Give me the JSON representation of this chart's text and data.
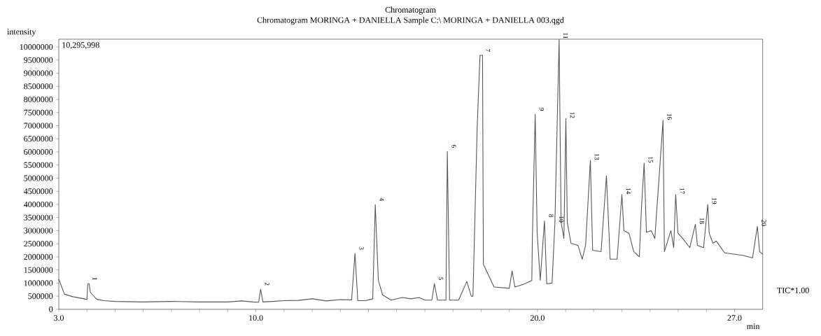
{
  "chart_data": {
    "type": "line",
    "title": "Chromatogram",
    "subtitle": "Chromatogram MORINGA + DANIELLA  Sample  C:\\ MORINGA + DANIELLA  003.qgd",
    "xlabel": "min",
    "ylabel": "intensity",
    "xlim": [
      3.0,
      28.0
    ],
    "ylim": [
      0,
      10295998
    ],
    "xticks": [
      {
        "value": 3,
        "label": "3.0"
      },
      {
        "value": 4,
        "label": null
      },
      {
        "value": 5,
        "label": null
      },
      {
        "value": 6,
        "label": null
      },
      {
        "value": 7,
        "label": null
      },
      {
        "value": 8,
        "label": null
      },
      {
        "value": 9,
        "label": null
      },
      {
        "value": 10,
        "label": "10.0"
      },
      {
        "value": 11,
        "label": null
      },
      {
        "value": 12,
        "label": null
      },
      {
        "value": 13,
        "label": null
      },
      {
        "value": 14,
        "label": null
      },
      {
        "value": 15,
        "label": null
      },
      {
        "value": 16,
        "label": null
      },
      {
        "value": 17,
        "label": null
      },
      {
        "value": 18,
        "label": null
      },
      {
        "value": 19,
        "label": null
      },
      {
        "value": 20,
        "label": "20.0"
      },
      {
        "value": 21,
        "label": null
      },
      {
        "value": 22,
        "label": null
      },
      {
        "value": 23,
        "label": null
      },
      {
        "value": 24,
        "label": null
      },
      {
        "value": 25,
        "label": null
      },
      {
        "value": 26,
        "label": null
      },
      {
        "value": 27,
        "label": "27.0"
      }
    ],
    "yticks": [
      0,
      500000,
      1000000,
      1500000,
      2000000,
      2500000,
      3000000,
      3500000,
      4000000,
      4500000,
      5000000,
      5500000,
      6000000,
      6500000,
      7000000,
      7500000,
      8000000,
      8500000,
      9000000,
      9500000,
      10000000
    ],
    "grid": false,
    "marker": "none",
    "line_style": "solid",
    "series": [
      {
        "color": "#555555",
        "x": [
          3.0,
          3.2,
          3.5,
          3.9,
          4.0,
          4.03,
          4.08,
          4.12,
          4.2,
          4.35,
          4.6,
          5.0,
          6.0,
          7.0,
          8.0,
          9.0,
          9.5,
          9.9,
          10.1,
          10.17,
          10.25,
          10.6,
          11.0,
          11.5,
          12.0,
          12.5,
          13.0,
          13.4,
          13.52,
          13.62,
          13.9,
          14.15,
          14.24,
          14.35,
          14.5,
          14.8,
          15.2,
          15.5,
          15.8,
          16.0,
          16.25,
          16.34,
          16.45,
          16.75,
          16.8,
          16.88,
          17.2,
          17.49,
          17.65,
          17.71,
          17.86,
          17.96,
          18.05,
          18.08,
          18.46,
          19.0,
          19.1,
          19.2,
          19.5,
          19.8,
          19.82,
          19.92,
          19.99,
          20.1,
          20.25,
          20.33,
          20.52,
          20.62,
          20.77,
          20.84,
          20.94,
          21.01,
          21.06,
          21.19,
          21.44,
          21.59,
          21.71,
          21.88,
          21.96,
          22.26,
          22.45,
          22.55,
          22.58,
          22.83,
          23.0,
          23.07,
          23.25,
          23.42,
          23.62,
          23.69,
          23.79,
          23.87,
          24.04,
          24.17,
          24.22,
          24.32,
          24.46,
          24.51,
          24.74,
          24.84,
          24.91,
          24.99,
          25.16,
          25.41,
          25.61,
          25.68,
          25.9,
          26.05,
          26.1,
          26.23,
          26.35,
          26.65,
          27.29,
          27.64,
          27.81,
          27.89,
          28.0
        ],
        "values": [
          1150000,
          580000,
          480000,
          400000,
          370000,
          970000,
          970000,
          650000,
          550000,
          380000,
          330000,
          300000,
          280000,
          300000,
          280000,
          280000,
          320000,
          280000,
          270000,
          770000,
          280000,
          300000,
          330000,
          340000,
          400000,
          320000,
          370000,
          360000,
          2130000,
          330000,
          330000,
          400000,
          3990000,
          1100000,
          550000,
          350000,
          450000,
          400000,
          450000,
          350000,
          350000,
          980000,
          350000,
          350000,
          6020000,
          350000,
          350000,
          1060000,
          500000,
          500000,
          6950000,
          9680000,
          9680000,
          1720000,
          850000,
          800000,
          1460000,
          850000,
          950000,
          1100000,
          2700000,
          7430000,
          2900000,
          1110000,
          3370000,
          970000,
          1000000,
          3300000,
          10290000,
          3320000,
          2700000,
          7270000,
          3320000,
          2520000,
          2440000,
          1910000,
          2440000,
          5680000,
          2250000,
          2200000,
          5090000,
          2700000,
          1910000,
          1910000,
          4380000,
          3000000,
          2900000,
          2200000,
          2000000,
          3770000,
          5570000,
          2940000,
          3000000,
          2700000,
          3500000,
          5010000,
          7210000,
          2200000,
          3000000,
          2350000,
          4380000,
          2900000,
          2700000,
          2350000,
          3240000,
          2440000,
          2350000,
          4000000,
          2900000,
          2520000,
          2600000,
          2150000,
          2060000,
          1960000,
          3160000,
          2200000,
          2100000
        ]
      }
    ],
    "annotations": [
      "10,295,998",
      "TIC*1.00",
      {
        "text": "1",
        "x": 4.05,
        "y": 970000
      },
      {
        "text": "2",
        "x": 10.17,
        "y": 770000
      },
      {
        "text": "3",
        "x": 13.52,
        "y": 2130000
      },
      {
        "text": "4",
        "x": 14.24,
        "y": 3990000
      },
      {
        "text": "5",
        "x": 16.34,
        "y": 980000
      },
      {
        "text": "6",
        "x": 16.8,
        "y": 6020000
      },
      {
        "text": "7",
        "x": 18.0,
        "y": 9680000
      },
      {
        "text": "8",
        "x": 20.25,
        "y": 3370000
      },
      {
        "text": "9",
        "x": 19.92,
        "y": 7430000
      },
      {
        "text": "10",
        "x": 20.62,
        "y": 3300000
      },
      {
        "text": "11",
        "x": 20.77,
        "y": 10290000
      },
      {
        "text": "12",
        "x": 21.01,
        "y": 7270000
      },
      {
        "text": "13",
        "x": 21.88,
        "y": 5680000
      },
      {
        "text": "14",
        "x": 23.0,
        "y": 4380000
      },
      {
        "text": "15",
        "x": 23.79,
        "y": 5570000
      },
      {
        "text": "16",
        "x": 24.46,
        "y": 7210000
      },
      {
        "text": "17",
        "x": 24.91,
        "y": 4380000
      },
      {
        "text": "18",
        "x": 25.61,
        "y": 3240000
      },
      {
        "text": "19",
        "x": 26.05,
        "y": 4000000
      },
      {
        "text": "20",
        "x": 27.81,
        "y": 3160000
      }
    ]
  }
}
